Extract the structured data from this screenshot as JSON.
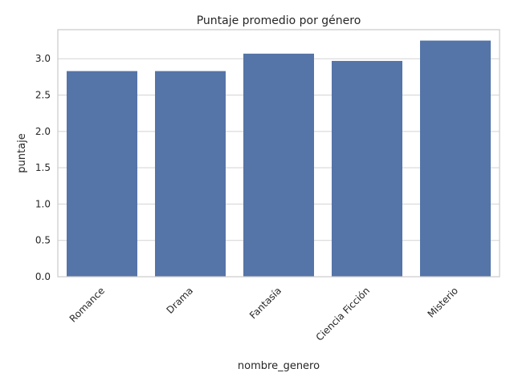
{
  "chart_data": {
    "type": "bar",
    "title": "Puntaje promedio por género",
    "xlabel": "nombre_genero",
    "ylabel": "puntaje",
    "categories": [
      "Romance",
      "Drama",
      "Fantasía",
      "Ciencia Ficción",
      "Misterio"
    ],
    "values": [
      2.83,
      2.83,
      3.07,
      2.97,
      3.25
    ],
    "ylim": [
      0,
      3.4
    ],
    "yticks": [
      0.0,
      0.5,
      1.0,
      1.5,
      2.0,
      2.5,
      3.0
    ],
    "ytick_labels": [
      "0.0",
      "0.5",
      "1.0",
      "1.5",
      "2.0",
      "2.5",
      "3.0"
    ],
    "grid": "horizontal",
    "bar_color": "#5574a8",
    "grid_color": "#d3d3d3",
    "frame_color": "#cccccc"
  }
}
